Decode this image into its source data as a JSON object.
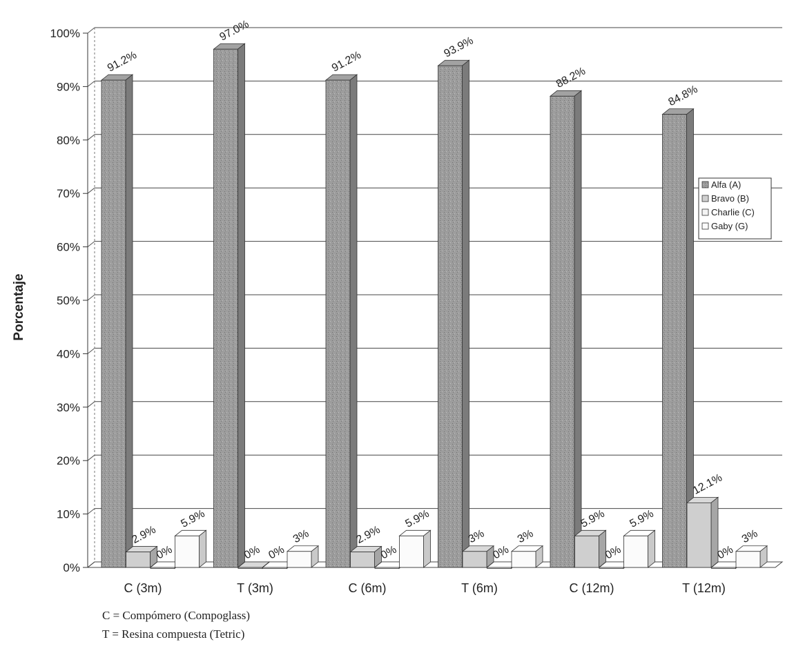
{
  "chart_data": {
    "type": "bar",
    "ylabel": "Porcentaje",
    "xlabel": "",
    "ylim": [
      0,
      100
    ],
    "yticks": [
      "0%",
      "10%",
      "20%",
      "30%",
      "40%",
      "50%",
      "60%",
      "70%",
      "80%",
      "90%",
      "100%"
    ],
    "categories": [
      "C (3m)",
      "T (3m)",
      "C (6m)",
      "T (6m)",
      "C (12m)",
      "T (12m)"
    ],
    "series": [
      {
        "name": "Alfa (A)",
        "color": "#9a9a9a",
        "values": [
          91.2,
          97.0,
          91.2,
          93.9,
          88.2,
          84.8
        ],
        "labels": [
          "91.2%",
          "97.0%",
          "91.2%",
          "93.9%",
          "88.2%",
          "84.8%"
        ]
      },
      {
        "name": "Bravo (B)",
        "color": "#cfcfcf",
        "values": [
          2.9,
          0,
          2.9,
          3,
          5.9,
          12.1
        ],
        "labels": [
          "2.9%",
          "0%",
          "2.9%",
          "3%",
          "5.9%",
          "12.1%"
        ]
      },
      {
        "name": "Charlie (C)",
        "color": "#f4f4f4",
        "values": [
          0,
          0,
          0,
          0,
          0,
          0
        ],
        "labels": [
          "0%",
          "0%",
          "0%",
          "0%",
          "0%",
          "0%"
        ]
      },
      {
        "name": "Gaby (G)",
        "color": "#fbfbfb",
        "values": [
          5.9,
          3,
          5.9,
          3,
          5.9,
          3
        ],
        "labels": [
          "5.9%",
          "3%",
          "5.9%",
          "3%",
          "5.9%",
          "3%"
        ]
      }
    ],
    "grid": true,
    "legend": "right",
    "three_d": true
  },
  "notes": [
    "C = Compómero (Compoglass)",
    "T = Resina compuesta (Tetric)"
  ]
}
